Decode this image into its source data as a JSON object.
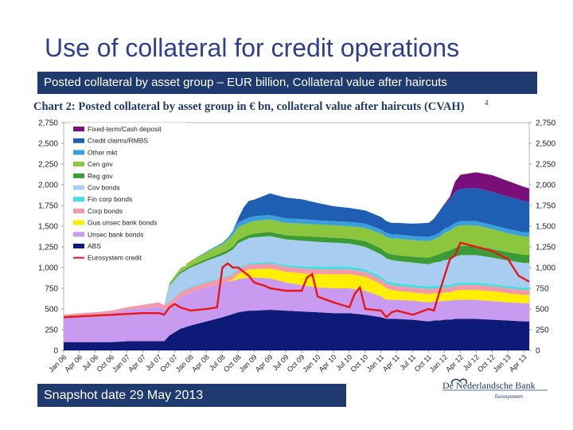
{
  "slide": {
    "title": "Use of collateral for credit operations",
    "subtitle": "Posted collateral by asset group – EUR billion, Collateral value after haircuts",
    "snapshot": "Snapshot date 29 May 2013",
    "logo_text": "De Nederlandsche Bank",
    "logo_subtext": "Eurosysteem"
  },
  "chart_data": {
    "type": "area",
    "title": "Chart 2: Posted collateral by asset group in € bn, collateral value after haircuts (CVAH)",
    "note": "4",
    "ylim": [
      0,
      2750
    ],
    "yticks": [
      "0",
      "250",
      "500",
      "750",
      "1,000",
      "1,250",
      "1,500",
      "1,750",
      "2,000",
      "2,250",
      "2,500",
      "2,750"
    ],
    "ytick_values": [
      0,
      250,
      500,
      750,
      1000,
      1250,
      1500,
      1750,
      2000,
      2250,
      2500,
      2750
    ],
    "x_tick_labels": [
      "Jan 06",
      "Apr 06",
      "Jul 06",
      "Oct 06",
      "Jan 07",
      "Apr 07",
      "Jul 07",
      "Oct 07",
      "Jan 08",
      "Apr 08",
      "Jul 08",
      "Oct 08",
      "Jan 09",
      "Apr 09",
      "Jul 09",
      "Oct 09",
      "Jan 10",
      "Apr 10",
      "Jul 10",
      "Oct 10",
      "Jan 11",
      "Apr 11",
      "Jul 11",
      "Oct 11",
      "Jan 12",
      "Apr 12",
      "Jul 12",
      "Oct 12",
      "Jan 13",
      "Apr 13"
    ],
    "x_tick_months": [
      0,
      3,
      6,
      9,
      12,
      15,
      18,
      21,
      24,
      27,
      30,
      33,
      36,
      39,
      42,
      45,
      48,
      51,
      54,
      57,
      60,
      63,
      66,
      69,
      72,
      75,
      78,
      81,
      84,
      87
    ],
    "x_domain": [
      0,
      88
    ],
    "grid": false,
    "legend": "top-left",
    "months": [
      0,
      3,
      6,
      9,
      12,
      15,
      18,
      19,
      20,
      21,
      22,
      24,
      27,
      30,
      31,
      32,
      33,
      34,
      35,
      36,
      39,
      42,
      45,
      48,
      51,
      54,
      57,
      60,
      61,
      62,
      63,
      66,
      69,
      70,
      71,
      72,
      73,
      74,
      75,
      78,
      81,
      84,
      87,
      88
    ],
    "series": [
      {
        "name": "Fixed-term/Cash deposit",
        "color": "#7b0f7a",
        "values": [
          0,
          0,
          0,
          0,
          0,
          0,
          0,
          0,
          0,
          0,
          0,
          0,
          0,
          0,
          0,
          0,
          0,
          0,
          0,
          0,
          0,
          0,
          0,
          0,
          0,
          0,
          0,
          0,
          0,
          0,
          0,
          0,
          0,
          0,
          0,
          0,
          30,
          120,
          170,
          190,
          200,
          190,
          170,
          160
        ]
      },
      {
        "name": "Credit claims/RMBS",
        "color": "#1e5fb4",
        "values": [
          0,
          0,
          0,
          0,
          0,
          0,
          0,
          0,
          0,
          0,
          0,
          0,
          0,
          0,
          0,
          0,
          50,
          150,
          200,
          200,
          260,
          250,
          240,
          210,
          180,
          170,
          160,
          150,
          140,
          140,
          140,
          150,
          170,
          200,
          260,
          300,
          330,
          380,
          390,
          400,
          400,
          390,
          380,
          370
        ]
      },
      {
        "name": "Other mkt",
        "color": "#3aa0dc",
        "values": [
          0,
          0,
          0,
          0,
          0,
          0,
          0,
          0,
          0,
          0,
          0,
          0,
          10,
          20,
          30,
          50,
          60,
          60,
          60,
          60,
          55,
          55,
          55,
          50,
          50,
          50,
          50,
          50,
          50,
          50,
          50,
          50,
          50,
          50,
          50,
          50,
          50,
          50,
          50,
          50,
          50,
          50,
          50,
          50
        ]
      },
      {
        "name": "Cen gov",
        "color": "#8cc63f",
        "values": [
          0,
          0,
          0,
          0,
          0,
          0,
          0,
          0,
          20,
          30,
          40,
          60,
          80,
          100,
          120,
          140,
          150,
          150,
          150,
          150,
          150,
          150,
          150,
          150,
          150,
          150,
          160,
          180,
          190,
          190,
          200,
          200,
          200,
          200,
          210,
          230,
          240,
          250,
          250,
          250,
          240,
          230,
          220,
          220
        ]
      },
      {
        "name": "Reg gov",
        "color": "#3d9b35",
        "values": [
          0,
          0,
          0,
          0,
          0,
          0,
          0,
          0,
          10,
          15,
          20,
          20,
          25,
          30,
          30,
          35,
          40,
          40,
          40,
          45,
          50,
          50,
          55,
          60,
          60,
          60,
          70,
          70,
          70,
          70,
          70,
          70,
          80,
          80,
          90,
          100,
          105,
          110,
          110,
          110,
          105,
          100,
          100,
          100
        ]
      },
      {
        "name": "Cov bonds",
        "color": "#a8cdf0",
        "values": [
          0,
          0,
          0,
          0,
          0,
          0,
          0,
          0,
          200,
          210,
          220,
          230,
          250,
          270,
          280,
          290,
          300,
          300,
          300,
          310,
          310,
          310,
          310,
          300,
          290,
          280,
          270,
          270,
          270,
          270,
          270,
          270,
          270,
          280,
          290,
          300,
          310,
          320,
          330,
          330,
          320,
          310,
          300,
          300
        ]
      },
      {
        "name": "Fin corp bonds",
        "color": "#40e0e0",
        "values": [
          0,
          0,
          0,
          0,
          0,
          0,
          0,
          0,
          5,
          5,
          5,
          10,
          10,
          10,
          10,
          10,
          15,
          15,
          15,
          15,
          20,
          20,
          25,
          30,
          30,
          30,
          30,
          30,
          30,
          30,
          30,
          30,
          30,
          30,
          30,
          30,
          30,
          30,
          30,
          30,
          25,
          25,
          25,
          25
        ]
      },
      {
        "name": "Corp bonds",
        "color": "#f39aa8",
        "values": [
          30,
          30,
          30,
          30,
          30,
          40,
          50,
          55,
          60,
          60,
          60,
          60,
          60,
          60,
          60,
          60,
          60,
          60,
          60,
          60,
          60,
          60,
          60,
          60,
          60,
          60,
          60,
          60,
          60,
          60,
          60,
          60,
          60,
          60,
          60,
          60,
          60,
          60,
          60,
          60,
          60,
          60,
          60,
          60
        ]
      },
      {
        "name": "Gua unsec bank bonds",
        "color": "#ffee00",
        "values": [
          0,
          0,
          0,
          0,
          0,
          0,
          0,
          0,
          0,
          0,
          0,
          0,
          0,
          0,
          0,
          20,
          60,
          80,
          100,
          100,
          120,
          130,
          140,
          160,
          170,
          170,
          170,
          150,
          140,
          120,
          110,
          100,
          100,
          100,
          100,
          100,
          100,
          110,
          120,
          120,
          120,
          110,
          100,
          100
        ]
      },
      {
        "name": "Unsec bank bonds",
        "color": "#c89bf0",
        "values": [
          300,
          320,
          330,
          350,
          380,
          400,
          420,
          380,
          340,
          360,
          380,
          400,
          410,
          410,
          410,
          400,
          400,
          400,
          400,
          400,
          380,
          340,
          320,
          300,
          300,
          300,
          290,
          250,
          230,
          230,
          230,
          230,
          230,
          230,
          230,
          230,
          230,
          230,
          230,
          230,
          225,
          220,
          220,
          220
        ]
      },
      {
        "name": "ABS",
        "color": "#0d1a78",
        "values": [
          100,
          100,
          100,
          100,
          110,
          110,
          110,
          110,
          180,
          220,
          260,
          300,
          350,
          400,
          420,
          440,
          460,
          470,
          480,
          480,
          490,
          480,
          470,
          460,
          450,
          450,
          430,
          400,
          380,
          380,
          380,
          370,
          350,
          360,
          360,
          370,
          370,
          380,
          380,
          380,
          370,
          360,
          350,
          350
        ]
      }
    ],
    "eurosystem_credit": {
      "name": "Eurosystem credit",
      "color": "#e8161b",
      "months": [
        0,
        3,
        6,
        9,
        12,
        15,
        18,
        19,
        20,
        21,
        22,
        24,
        27,
        29,
        30,
        31,
        32,
        33,
        34,
        35,
        36,
        37,
        38,
        39,
        42,
        45,
        46,
        47,
        48,
        51,
        54,
        55,
        56,
        57,
        60,
        61,
        62,
        63,
        66,
        69,
        70,
        71,
        72,
        73,
        74,
        75,
        78,
        81,
        84,
        86,
        88
      ],
      "values": [
        400,
        410,
        420,
        430,
        440,
        450,
        450,
        430,
        520,
        560,
        520,
        480,
        500,
        520,
        1000,
        1050,
        1000,
        1000,
        950,
        900,
        820,
        800,
        780,
        750,
        720,
        720,
        880,
        920,
        650,
        580,
        520,
        680,
        760,
        500,
        480,
        400,
        460,
        480,
        430,
        500,
        480,
        700,
        900,
        1100,
        1150,
        1300,
        1250,
        1200,
        1100,
        900,
        830
      ]
    }
  }
}
